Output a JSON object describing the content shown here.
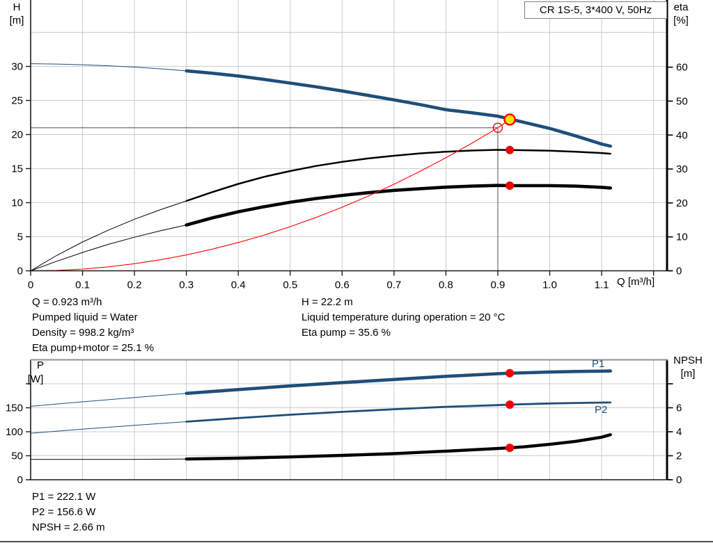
{
  "page": {
    "background": "#ffffff"
  },
  "marker_styles": {
    "yellow-dot": {
      "fill": "#ffe100",
      "stroke": "#ff0000"
    },
    "red-dot": {
      "fill": "#f20000"
    },
    "open-circle": {
      "stroke": "#ff0000"
    }
  },
  "callouts": {
    "left": [
      "Q = 0.923 m³/h",
      "Pumped liquid = Water",
      "Density = 998.2 kg/m³",
      "Eta pump+motor = 25.1 %"
    ],
    "right": [
      "H = 22.2 m",
      "Liquid temperature during operation = 20 °C",
      "Eta pump = 35.6 %"
    ],
    "bottom": [
      "P1 = 222.1 W",
      "P2 = 156.6 W",
      "NPSH = 2.66 m"
    ]
  },
  "chart_data": [
    {
      "id": "qh-eta-chart",
      "type": "line",
      "title": "CR 1S-5, 3*400 V, 50Hz",
      "x_axis": {
        "label": "Q [m³/h]",
        "min": 0,
        "max": 1.226,
        "ticks": [
          0,
          0.1,
          0.2,
          0.3,
          0.4,
          0.5,
          0.6,
          0.7,
          0.8,
          0.9,
          1.0,
          1.1,
          1.2
        ],
        "tick_labels": [
          "0",
          "0.1",
          "0.2",
          "0.3",
          "0.4",
          "0.5",
          "0.6",
          "0.7",
          "0.8",
          "0.9",
          "1.0",
          "1.1",
          ""
        ],
        "grid": [
          0.1,
          0.2,
          0.3,
          0.4,
          0.5,
          0.6,
          0.7,
          0.8,
          0.9,
          1.0,
          1.1,
          1.2
        ]
      },
      "y_left": {
        "name": "H",
        "unit": "[m]",
        "min": 0,
        "max": 39.75,
        "ticks": [
          0,
          5,
          10,
          15,
          20,
          25,
          30
        ],
        "tick_labels": [
          "0",
          "5",
          "10",
          "15",
          "20",
          "25",
          "30"
        ],
        "grid": [
          5,
          10,
          15,
          20,
          25,
          30,
          35
        ]
      },
      "y_right": {
        "name": "eta",
        "unit": "[%]",
        "min": 0,
        "max": 79.8,
        "ticks": [
          0,
          10,
          20,
          30,
          40,
          50,
          60
        ],
        "tick_labels": [
          "0",
          "10",
          "20",
          "30",
          "40",
          "50",
          "60"
        ],
        "grid": []
      },
      "crosshair": {
        "q": 0.9,
        "value": 21
      },
      "series": [
        {
          "id": "qh",
          "name": "QH",
          "axis": "left",
          "color": "#1f4e79",
          "width": 4.6,
          "thin_until": 0.3,
          "points": [
            [
              0,
              30.4
            ],
            [
              0.05,
              30.35
            ],
            [
              0.1,
              30.25
            ],
            [
              0.15,
              30.1
            ],
            [
              0.2,
              29.9
            ],
            [
              0.25,
              29.65
            ],
            [
              0.3,
              29.35
            ],
            [
              0.35,
              29.0
            ],
            [
              0.4,
              28.6
            ],
            [
              0.45,
              28.1
            ],
            [
              0.5,
              27.55
            ],
            [
              0.55,
              27.0
            ],
            [
              0.6,
              26.4
            ],
            [
              0.65,
              25.75
            ],
            [
              0.7,
              25.1
            ],
            [
              0.75,
              24.4
            ],
            [
              0.8,
              23.65
            ],
            [
              0.85,
              23.2
            ],
            [
              0.9,
              22.7
            ],
            [
              0.95,
              21.8
            ],
            [
              1.0,
              20.9
            ],
            [
              1.05,
              19.8
            ],
            [
              1.1,
              18.6
            ],
            [
              1.117,
              18.3
            ]
          ]
        },
        {
          "id": "eta-pump",
          "name": "Eta pump",
          "axis": "right",
          "color": "#000000",
          "width": 2.5,
          "thin_until": 0.3,
          "points": [
            [
              0,
              0
            ],
            [
              0.05,
              4.5
            ],
            [
              0.1,
              8.5
            ],
            [
              0.15,
              12.0
            ],
            [
              0.2,
              15.2
            ],
            [
              0.25,
              18.0
            ],
            [
              0.3,
              20.6
            ],
            [
              0.35,
              23.2
            ],
            [
              0.4,
              25.6
            ],
            [
              0.45,
              27.7
            ],
            [
              0.5,
              29.4
            ],
            [
              0.55,
              30.9
            ],
            [
              0.6,
              32.1
            ],
            [
              0.65,
              33.1
            ],
            [
              0.7,
              33.9
            ],
            [
              0.75,
              34.6
            ],
            [
              0.8,
              35.1
            ],
            [
              0.85,
              35.45
            ],
            [
              0.9,
              35.65
            ],
            [
              0.923,
              35.6
            ],
            [
              1.0,
              35.4
            ],
            [
              1.05,
              35.1
            ],
            [
              1.1,
              34.7
            ],
            [
              1.117,
              34.5
            ]
          ]
        },
        {
          "id": "eta-pump-motor",
          "name": "Eta pump+motor",
          "axis": "right",
          "color": "#000000",
          "width": 4.6,
          "thin_until": 0.3,
          "points": [
            [
              0,
              0
            ],
            [
              0.05,
              2.8
            ],
            [
              0.1,
              5.4
            ],
            [
              0.15,
              7.8
            ],
            [
              0.2,
              9.9
            ],
            [
              0.25,
              11.8
            ],
            [
              0.3,
              13.5
            ],
            [
              0.35,
              15.6
            ],
            [
              0.4,
              17.4
            ],
            [
              0.45,
              18.9
            ],
            [
              0.5,
              20.2
            ],
            [
              0.55,
              21.3
            ],
            [
              0.6,
              22.2
            ],
            [
              0.65,
              23.0
            ],
            [
              0.7,
              23.7
            ],
            [
              0.75,
              24.2
            ],
            [
              0.8,
              24.65
            ],
            [
              0.85,
              24.95
            ],
            [
              0.9,
              25.15
            ],
            [
              0.923,
              25.1
            ],
            [
              1.0,
              25.1
            ],
            [
              1.05,
              24.95
            ],
            [
              1.1,
              24.6
            ],
            [
              1.117,
              24.4
            ]
          ]
        },
        {
          "id": "system-curve",
          "name": "System curve",
          "axis": "left",
          "color": "#ff0000",
          "width": 1.1,
          "points": [
            [
              0,
              0
            ],
            [
              0.05,
              0.06
            ],
            [
              0.1,
              0.26
            ],
            [
              0.15,
              0.58
            ],
            [
              0.2,
              1.04
            ],
            [
              0.25,
              1.62
            ],
            [
              0.3,
              2.33
            ],
            [
              0.35,
              3.18
            ],
            [
              0.4,
              4.15
            ],
            [
              0.45,
              5.25
            ],
            [
              0.5,
              6.48
            ],
            [
              0.55,
              7.84
            ],
            [
              0.6,
              9.33
            ],
            [
              0.65,
              10.96
            ],
            [
              0.7,
              12.71
            ],
            [
              0.75,
              14.59
            ],
            [
              0.8,
              16.59
            ],
            [
              0.85,
              18.73
            ],
            [
              0.9,
              21.0
            ],
            [
              0.923,
              22.2
            ]
          ]
        }
      ],
      "markers": [
        {
          "id": "duty-point",
          "q": 0.9,
          "value": 21,
          "axis": "left",
          "style": "open-circle"
        },
        {
          "id": "operating-point",
          "q": 0.923,
          "value": 22.2,
          "axis": "left",
          "style": "yellow-dot"
        },
        {
          "id": "eta-pump-point",
          "q": 0.923,
          "value": 35.6,
          "axis": "right",
          "style": "red-dot"
        },
        {
          "id": "eta-pump-motor-point",
          "q": 0.923,
          "value": 25.1,
          "axis": "right",
          "style": "red-dot"
        }
      ]
    },
    {
      "id": "power-npsh-chart",
      "type": "line",
      "title": "",
      "x_axis": {
        "label": "",
        "min": 0,
        "max": 1.226,
        "ticks": [],
        "tick_labels": [],
        "grid": [
          0.1,
          0.2,
          0.3,
          0.4,
          0.5,
          0.6,
          0.7,
          0.8,
          0.9,
          1.0,
          1.1,
          1.2
        ]
      },
      "y_left": {
        "name": "P",
        "unit": "[W]",
        "min": 0,
        "max": 250,
        "ticks": [
          0,
          50,
          100,
          150,
          200
        ],
        "tick_labels": [
          "0",
          "50",
          "100",
          "150",
          ""
        ],
        "grid": [
          50,
          100,
          150,
          200
        ]
      },
      "y_right": {
        "name": "NPSH",
        "unit": "[m]",
        "min": 0,
        "max": 10,
        "ticks": [
          0,
          2,
          4,
          6,
          8
        ],
        "tick_labels": [
          "0",
          "2",
          "4",
          "6",
          ""
        ],
        "grid": []
      },
      "series": [
        {
          "id": "p1",
          "name": "P1",
          "axis": "left",
          "color": "#1f4e79",
          "width": 4.6,
          "thin_until": 0.3,
          "points": [
            [
              0,
              153
            ],
            [
              0.1,
              162.5
            ],
            [
              0.2,
              171.5
            ],
            [
              0.3,
              180
            ],
            [
              0.4,
              188
            ],
            [
              0.5,
              195.5
            ],
            [
              0.6,
              202.5
            ],
            [
              0.7,
              209
            ],
            [
              0.8,
              215.5
            ],
            [
              0.9,
              221
            ],
            [
              0.923,
              222.1
            ],
            [
              1.0,
              224.5
            ],
            [
              1.05,
              225.7
            ],
            [
              1.1,
              226.4
            ],
            [
              1.117,
              226.6
            ]
          ]
        },
        {
          "id": "p2",
          "name": "P2",
          "axis": "left",
          "color": "#1f4e79",
          "width": 2.8,
          "thin_until": 0.3,
          "points": [
            [
              0,
              97
            ],
            [
              0.1,
              105.5
            ],
            [
              0.2,
              113.5
            ],
            [
              0.3,
              121
            ],
            [
              0.4,
              128.5
            ],
            [
              0.5,
              135.5
            ],
            [
              0.6,
              141.5
            ],
            [
              0.7,
              147
            ],
            [
              0.8,
              152
            ],
            [
              0.9,
              155.5
            ],
            [
              0.923,
              156.6
            ],
            [
              1.0,
              159
            ],
            [
              1.05,
              160
            ],
            [
              1.1,
              160.8
            ],
            [
              1.117,
              161
            ]
          ]
        },
        {
          "id": "npsh",
          "name": "NPSH",
          "axis": "right",
          "color": "#000000",
          "width": 4.4,
          "thin_until": 0.3,
          "points": [
            [
              0,
              1.7
            ],
            [
              0.1,
              1.7
            ],
            [
              0.2,
              1.7
            ],
            [
              0.3,
              1.73
            ],
            [
              0.4,
              1.8
            ],
            [
              0.5,
              1.9
            ],
            [
              0.6,
              2.03
            ],
            [
              0.7,
              2.18
            ],
            [
              0.8,
              2.38
            ],
            [
              0.9,
              2.6
            ],
            [
              0.923,
              2.66
            ],
            [
              0.95,
              2.74
            ],
            [
              1.0,
              2.95
            ],
            [
              1.05,
              3.2
            ],
            [
              1.1,
              3.55
            ],
            [
              1.117,
              3.75
            ]
          ]
        }
      ],
      "markers": [
        {
          "id": "p1-point",
          "q": 0.923,
          "value": 222.1,
          "axis": "left",
          "style": "red-dot"
        },
        {
          "id": "p2-point",
          "q": 0.923,
          "value": 156.6,
          "axis": "left",
          "style": "red-dot"
        },
        {
          "id": "npsh-point",
          "q": 0.923,
          "value": 2.66,
          "axis": "right",
          "style": "red-dot"
        }
      ]
    }
  ]
}
